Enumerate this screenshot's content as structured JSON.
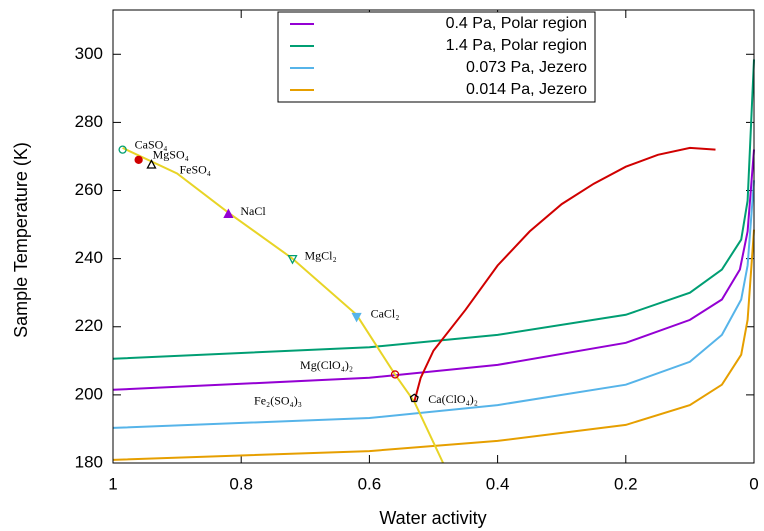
{
  "chart_data": {
    "type": "line",
    "xlabel": "Water activity",
    "ylabel": "Sample Temperature (K)",
    "xlim": [
      1,
      0
    ],
    "ylim": [
      180,
      313
    ],
    "xticks": [
      1,
      0.8,
      0.6,
      0.4,
      0.2,
      0
    ],
    "yticks": [
      180,
      200,
      220,
      240,
      260,
      280,
      300
    ],
    "legend": "top-center",
    "series": [
      {
        "name": "0.4 Pa, Polar region",
        "color": "#9400d3",
        "x": [
          1,
          0.6,
          0.4,
          0.2,
          0.1,
          0.05,
          0.022,
          0.01,
          0
        ],
        "values": [
          201.5,
          205,
          208.8,
          215.3,
          222,
          228,
          236.8,
          248,
          272
        ]
      },
      {
        "name": "1.4 Pa, Polar region",
        "color": "#009e73",
        "x": [
          1,
          0.6,
          0.4,
          0.2,
          0.1,
          0.05,
          0.02,
          0.01,
          0
        ],
        "values": [
          210.6,
          214,
          217.6,
          223.5,
          230,
          236.8,
          245.6,
          257,
          298.5
        ]
      },
      {
        "name": "0.073 Pa, Jezero",
        "color": "#56b4e9",
        "x": [
          1,
          0.6,
          0.4,
          0.2,
          0.1,
          0.05,
          0.02,
          0.01,
          0
        ],
        "values": [
          190.3,
          193.2,
          197,
          203,
          209.7,
          217.6,
          228,
          238,
          263
        ]
      },
      {
        "name": "0.014 Pa, Jezero",
        "color": "#e69f00",
        "x": [
          1,
          0.6,
          0.4,
          0.2,
          0.1,
          0.05,
          0.02,
          0.01,
          0
        ],
        "values": [
          180.9,
          183.5,
          186.5,
          191.2,
          197,
          203,
          211.8,
          222,
          248.5
        ]
      },
      {
        "color": "#e8d426",
        "x": [
          0.985,
          0.9,
          0.82,
          0.72,
          0.62,
          0.56,
          0.53,
          0.5,
          0.485
        ],
        "values": [
          272.5,
          265,
          253.5,
          240,
          223.5,
          206,
          198,
          186,
          180
        ]
      },
      {
        "color": "#d00000",
        "x": [
          0.53,
          0.52,
          0.5,
          0.45,
          0.4,
          0.35,
          0.3,
          0.25,
          0.2,
          0.15,
          0.1,
          0.06
        ],
        "values": [
          198,
          205,
          213,
          225,
          238,
          248,
          256,
          262,
          267,
          270.5,
          272.5,
          272
        ]
      }
    ],
    "points": [
      {
        "label": "CaSO₄",
        "x": 0.985,
        "y": 272,
        "color": "#009e73",
        "marker": "circle-open"
      },
      {
        "label": "MgSO₄",
        "x": 0.96,
        "y": 269,
        "color": "#d00000",
        "marker": "circle"
      },
      {
        "label": "FeSO₄",
        "x": 0.94,
        "y": 267.5,
        "color": "#000000",
        "marker": "triangle-open"
      },
      {
        "label": "NaCl",
        "x": 0.82,
        "y": 253,
        "color": "#9400d3",
        "marker": "triangle"
      },
      {
        "label": "MgCl₂",
        "x": 0.72,
        "y": 240,
        "color": "#009e73",
        "marker": "triangle-down-open"
      },
      {
        "label": "CaCl₂",
        "x": 0.62,
        "y": 223,
        "color": "#56b4e9",
        "marker": "triangle-down"
      },
      {
        "label": "Mg(ClO₄)₂",
        "x": 0.56,
        "y": 206,
        "color": "#d00000",
        "marker": "circle-open"
      },
      {
        "label": "Ca(ClO₄)₂",
        "x": 0.53,
        "y": 199,
        "color": "#000000",
        "marker": "pentagon-open"
      }
    ],
    "annotations": [
      "Fe₂(SO₄)₃"
    ]
  }
}
